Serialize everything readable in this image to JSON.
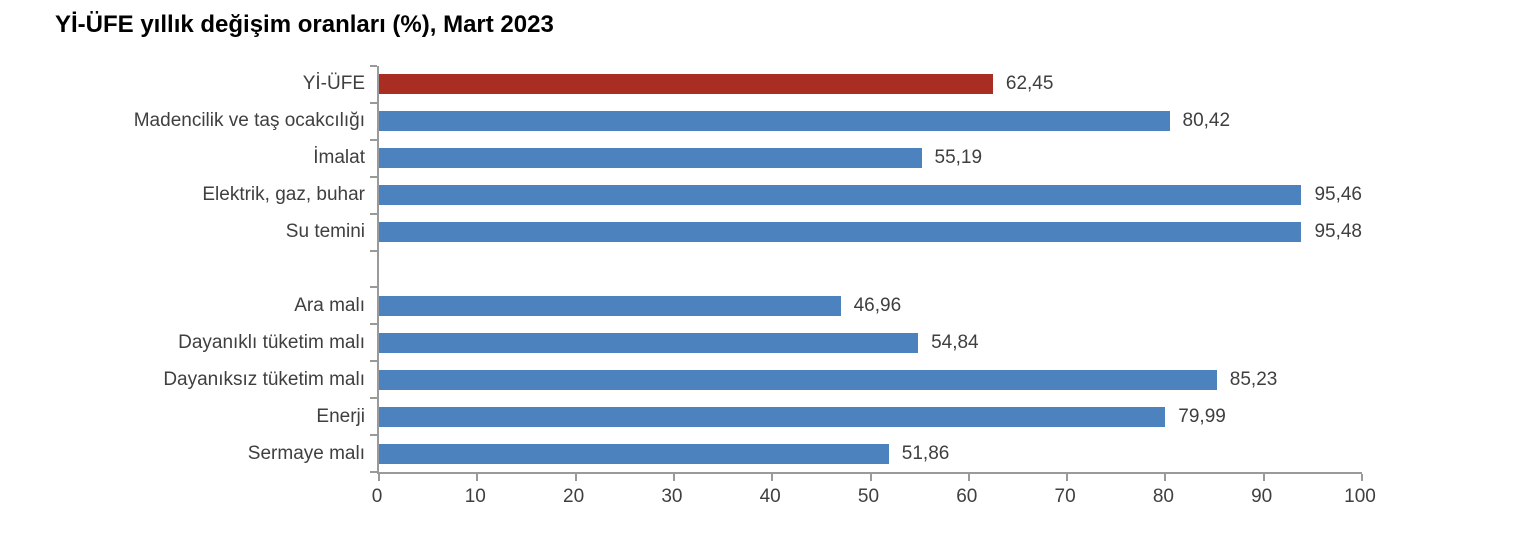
{
  "title": "Yİ-ÜFE yıllık değişim oranları (%), Mart 2023",
  "chart_data": {
    "type": "bar",
    "orientation": "horizontal",
    "title": "Yİ-ÜFE yıllık değişim oranları (%), Mart 2023",
    "categories": [
      "Yİ-ÜFE",
      "Madencilik ve taş ocakcılığı",
      "İmalat",
      "Elektrik, gaz, buhar",
      "Su temini",
      "Ara malı",
      "Dayanıklı tüketim malı",
      "Dayanıksız tüketim malı",
      "Enerji",
      "Sermaye malı"
    ],
    "values": [
      62.45,
      80.42,
      55.19,
      95.46,
      95.48,
      46.96,
      54.84,
      85.23,
      79.99,
      51.86
    ],
    "value_labels": [
      "62,45",
      "80,42",
      "55,19",
      "95,46",
      "95,48",
      "46,96",
      "54,84",
      "85,23",
      "79,99",
      "51,86"
    ],
    "gap_after_index": 4,
    "highlight_index": 0,
    "xlim": [
      0,
      100
    ],
    "x_tick_labels": [
      "0",
      "10",
      "20",
      "30",
      "40",
      "50",
      "60",
      "70",
      "80",
      "90",
      "100"
    ],
    "x_tick_values": [
      0,
      10,
      20,
      30,
      40,
      50,
      60,
      70,
      80,
      90,
      100
    ],
    "grid": false,
    "legend": "none",
    "colors": {
      "highlight_bar": "#aa2d23",
      "default_bar": "#4c82be",
      "axis": "#9a9a9a",
      "text": "#3f3f3f",
      "title_text": "#000000"
    }
  }
}
